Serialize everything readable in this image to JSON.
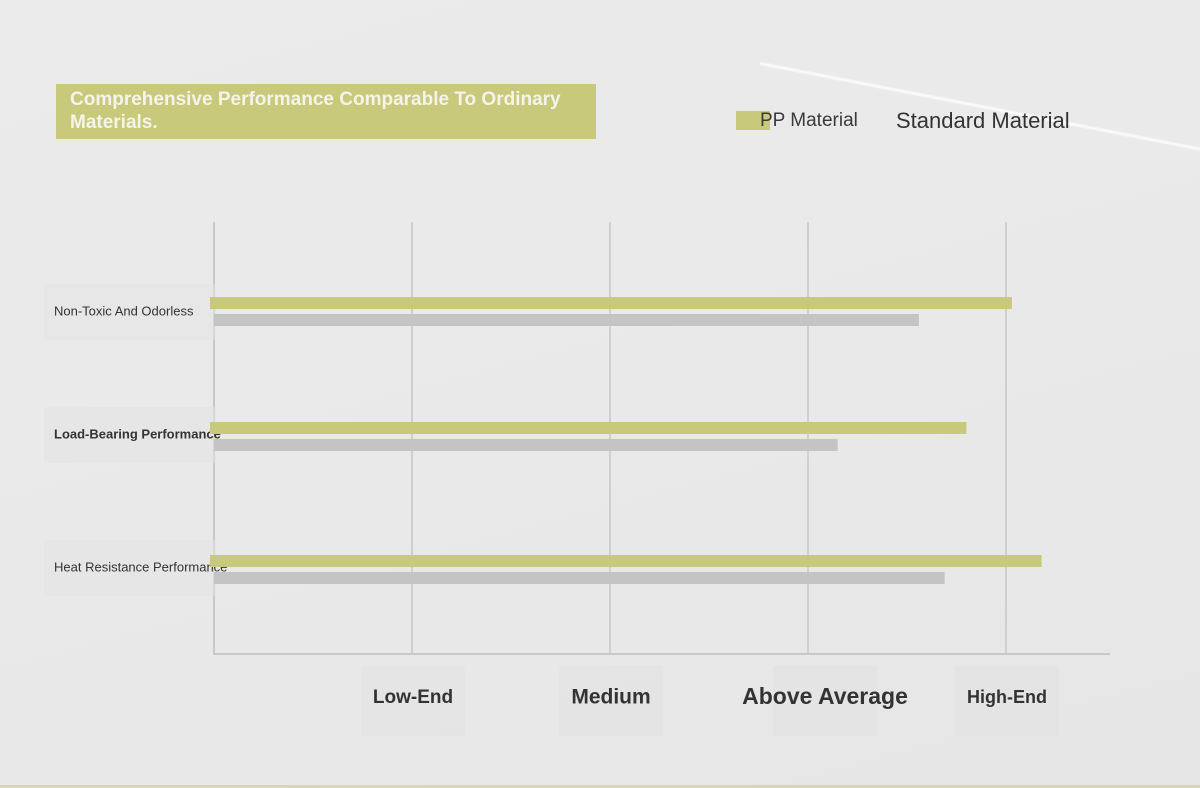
{
  "chart_data": {
    "type": "bar",
    "orientation": "horizontal",
    "title": "Comprehensive Performance Comparable To Ordinary Materials.",
    "categories": [
      "Non-Toxic And Odorless",
      "Load-Bearing Performance",
      "Heat Resistance Performance"
    ],
    "x_tick_labels": [
      "Low-End",
      "Medium",
      "Above Average",
      "High-End"
    ],
    "xlim": [
      0,
      4.5
    ],
    "series": [
      {
        "name": "PP Material",
        "color": "#c9c97c",
        "values": [
          4.03,
          3.8,
          4.18
        ]
      },
      {
        "name": "Standard Material",
        "color": "#c4c4c4",
        "values": [
          3.56,
          3.15,
          3.69
        ]
      }
    ],
    "legend_position": "top-right",
    "grid": true
  }
}
